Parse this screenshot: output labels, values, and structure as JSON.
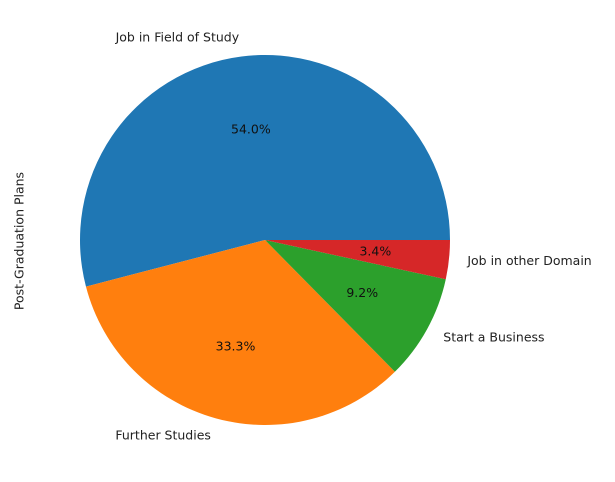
{
  "chart_data": {
    "type": "pie",
    "ylabel": "Post-Graduation Plans",
    "startangle_deg": 0,
    "direction": "counterclockwise",
    "slices": [
      {
        "label": "Job in Field of Study",
        "value": 54.0,
        "pct_label": "54.0%",
        "color": "#1f77b4"
      },
      {
        "label": "Further Studies",
        "value": 33.3,
        "pct_label": "33.3%",
        "color": "#ff7f0e"
      },
      {
        "label": "Start a Business",
        "value": 9.2,
        "pct_label": "9.2%",
        "color": "#2ca02c"
      },
      {
        "label": "Job in other Domain",
        "value": 3.4,
        "pct_label": "3.4%",
        "color": "#d62728"
      }
    ]
  }
}
